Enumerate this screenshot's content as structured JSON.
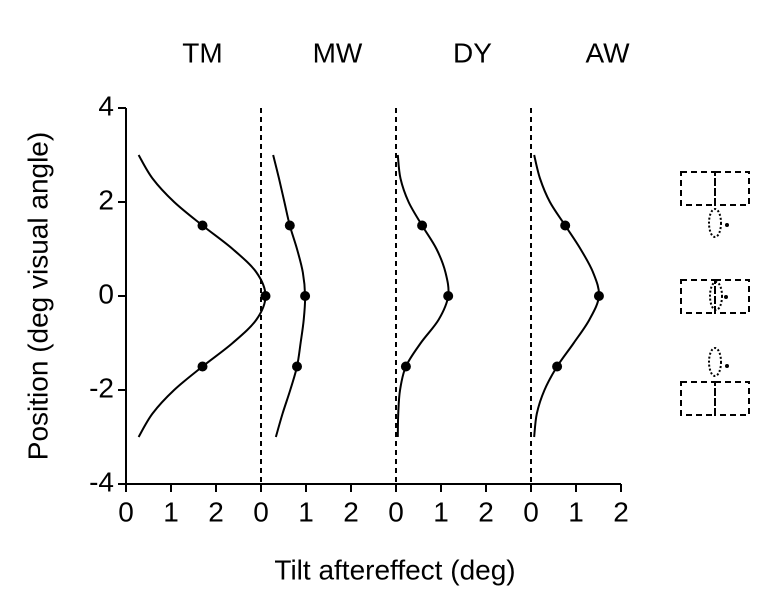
{
  "chart_data": {
    "type": "scatter",
    "ylabel": "Position (deg visual angle)",
    "xlabel": "Tilt aftereffect (deg)",
    "ylim": [
      -4,
      4
    ],
    "yticks": [
      -4,
      -2,
      0,
      2,
      4
    ],
    "panels": [
      {
        "title": "TM",
        "xlim": [
          0,
          3
        ],
        "xticks": [
          0,
          1,
          2
        ],
        "points": {
          "x": [
            1.7,
            3.1,
            1.7
          ],
          "y": [
            1.5,
            0,
            -1.5
          ]
        },
        "fit": {
          "x": [
            0.28,
            0.59,
            1.07,
            1.7,
            2.37,
            2.9,
            3.1,
            2.9,
            2.37,
            1.7,
            1.07,
            0.59,
            0.28
          ],
          "y": [
            3,
            2.5,
            2,
            1.5,
            1,
            0.5,
            0,
            -0.5,
            -1,
            -1.5,
            -2,
            -2.5,
            -3
          ]
        }
      },
      {
        "title": "MW",
        "xlim": [
          0,
          3
        ],
        "xticks": [
          0,
          1,
          2
        ],
        "points": {
          "x": [
            0.64,
            0.98,
            0.8
          ],
          "y": [
            1.5,
            0,
            -1.5
          ]
        },
        "fit": {
          "x": [
            0.27,
            0.4,
            0.52,
            0.64,
            0.8,
            0.93,
            0.98,
            0.95,
            0.88,
            0.8,
            0.65,
            0.48,
            0.33
          ],
          "y": [
            3,
            2.5,
            2,
            1.5,
            1,
            0.5,
            0,
            -0.5,
            -1,
            -1.5,
            -2,
            -2.5,
            -3
          ]
        }
      },
      {
        "title": "DY",
        "xlim": [
          0,
          3
        ],
        "xticks": [
          0,
          1,
          2
        ],
        "points": {
          "x": [
            0.58,
            1.16,
            0.22
          ],
          "y": [
            1.5,
            0,
            -1.5
          ]
        },
        "fit": {
          "x": [
            0.04,
            0.1,
            0.28,
            0.58,
            0.9,
            1.1,
            1.16,
            0.95,
            0.55,
            0.22,
            0.09,
            0.05,
            0.04
          ],
          "y": [
            3,
            2.5,
            2,
            1.5,
            1,
            0.5,
            0,
            -0.5,
            -1,
            -1.5,
            -2,
            -2.5,
            -3
          ]
        }
      },
      {
        "title": "AW",
        "xlim": [
          0,
          2
        ],
        "xticks": [
          0,
          1,
          2
        ],
        "points": {
          "x": [
            0.76,
            1.51,
            0.58
          ],
          "y": [
            1.5,
            0,
            -1.5
          ]
        },
        "fit": {
          "x": [
            0.07,
            0.2,
            0.42,
            0.76,
            1.1,
            1.38,
            1.51,
            1.3,
            0.95,
            0.58,
            0.3,
            0.13,
            0.07
          ],
          "y": [
            3,
            2.5,
            2,
            1.5,
            1,
            0.5,
            0,
            -0.5,
            -1,
            -1.5,
            -2,
            -2.5,
            -3
          ]
        }
      }
    ]
  }
}
